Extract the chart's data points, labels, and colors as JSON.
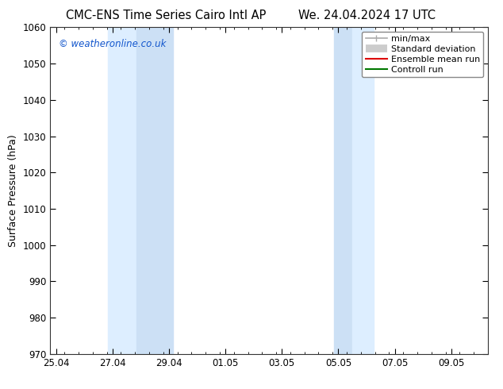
{
  "title_left": "CMC-ENS Time Series Cairo Intl AP",
  "title_right": "We. 24.04.2024 17 UTC",
  "ylabel": "Surface Pressure (hPa)",
  "ylim": [
    970,
    1060
  ],
  "yticks": [
    970,
    980,
    990,
    1000,
    1010,
    1020,
    1030,
    1040,
    1050,
    1060
  ],
  "xtick_labels": [
    "25.04",
    "27.04",
    "29.04",
    "01.05",
    "03.05",
    "05.05",
    "07.05",
    "09.05"
  ],
  "xtick_positions": [
    0,
    2,
    4,
    6,
    8,
    10,
    12,
    14
  ],
  "xlim": [
    -0.2,
    15.3
  ],
  "shaded_bands": [
    {
      "xmin": 1.85,
      "xmax": 2.85,
      "color": "#ddeeff"
    },
    {
      "xmin": 2.85,
      "xmax": 4.15,
      "color": "#cce0f5"
    },
    {
      "xmin": 9.85,
      "xmax": 10.5,
      "color": "#cce0f5"
    },
    {
      "xmin": 10.5,
      "xmax": 11.25,
      "color": "#ddeeff"
    }
  ],
  "watermark": "© weatheronline.co.uk",
  "watermark_color": "#1155cc",
  "background_color": "#ffffff",
  "legend_items": [
    {
      "label": "min/max",
      "color": "#aaaaaa",
      "lw": 1.2,
      "type": "line_with_tick"
    },
    {
      "label": "Standard deviation",
      "color": "#cccccc",
      "lw": 7,
      "type": "thick_line"
    },
    {
      "label": "Ensemble mean run",
      "color": "#dd0000",
      "lw": 1.5,
      "type": "line"
    },
    {
      "label": "Controll run",
      "color": "#007700",
      "lw": 1.5,
      "type": "line"
    }
  ],
  "title_fontsize": 10.5,
  "axis_label_fontsize": 9,
  "tick_fontsize": 8.5,
  "legend_fontsize": 8
}
